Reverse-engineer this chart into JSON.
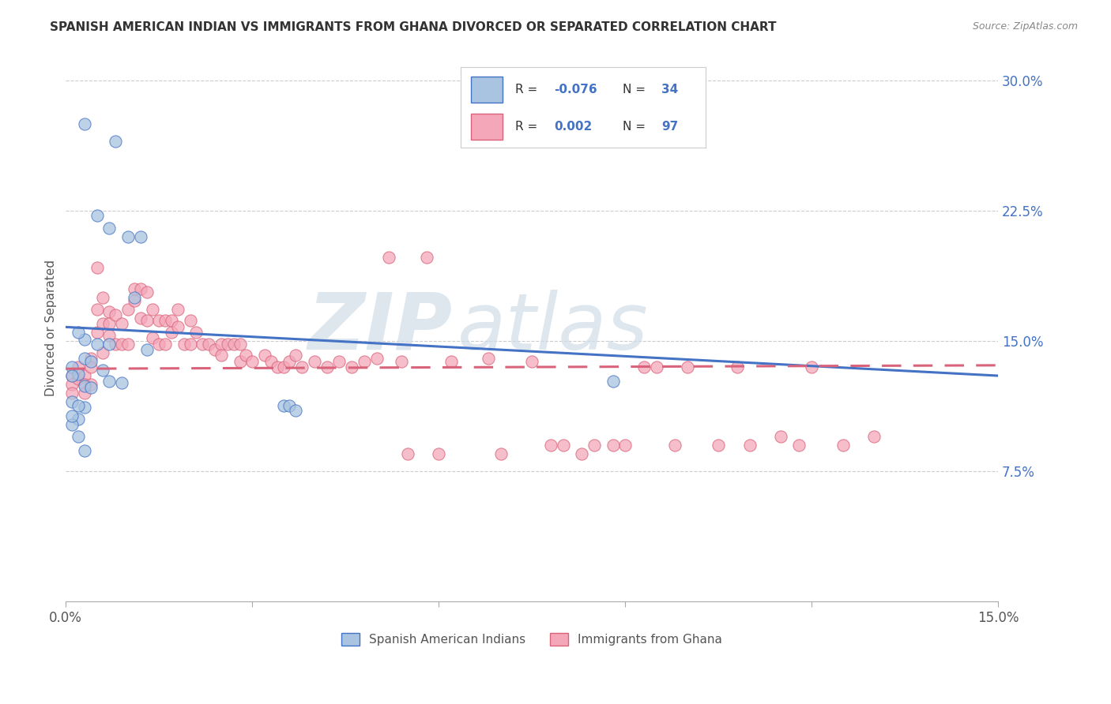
{
  "title": "SPANISH AMERICAN INDIAN VS IMMIGRANTS FROM GHANA DIVORCED OR SEPARATED CORRELATION CHART",
  "source": "Source: ZipAtlas.com",
  "ylabel": "Divorced or Separated",
  "watermark": "ZIPatlas",
  "xlim": [
    0.0,
    0.15
  ],
  "ylim": [
    0.0,
    0.315
  ],
  "xtick_vals": [
    0.0,
    0.03,
    0.06,
    0.09,
    0.12,
    0.15
  ],
  "xtick_labels": [
    "0.0%",
    "",
    "",
    "",
    "",
    "15.0%"
  ],
  "yticks_right": [
    0.075,
    0.15,
    0.225,
    0.3
  ],
  "ytick_right_labels": [
    "7.5%",
    "15.0%",
    "22.5%",
    "30.0%"
  ],
  "blue_R": "-0.076",
  "blue_N": "34",
  "pink_R": "0.002",
  "pink_N": "97",
  "blue_color": "#a8c4e0",
  "pink_color": "#f4a7b9",
  "blue_line_color": "#4472c4",
  "pink_line_color": "#d9637a",
  "legend_label_blue": "Spanish American Indians",
  "legend_label_pink": "Immigrants from Ghana",
  "blue_line_x": [
    0.0,
    0.15
  ],
  "blue_line_y": [
    0.158,
    0.13
  ],
  "pink_line_x": [
    0.0,
    0.15
  ],
  "pink_line_y": [
    0.134,
    0.136
  ],
  "blue_scatter_x": [
    0.003,
    0.008,
    0.005,
    0.007,
    0.01,
    0.012,
    0.011,
    0.005,
    0.007,
    0.003,
    0.002,
    0.013,
    0.003,
    0.004,
    0.006,
    0.007,
    0.009,
    0.001,
    0.002,
    0.001,
    0.003,
    0.004,
    0.003,
    0.001,
    0.002,
    0.035,
    0.036,
    0.037,
    0.002,
    0.001,
    0.001,
    0.088,
    0.002,
    0.003
  ],
  "blue_scatter_y": [
    0.275,
    0.265,
    0.222,
    0.215,
    0.21,
    0.21,
    0.175,
    0.148,
    0.148,
    0.151,
    0.155,
    0.145,
    0.14,
    0.138,
    0.133,
    0.127,
    0.126,
    0.135,
    0.131,
    0.13,
    0.124,
    0.123,
    0.112,
    0.115,
    0.113,
    0.113,
    0.113,
    0.11,
    0.105,
    0.102,
    0.107,
    0.127,
    0.095,
    0.087
  ],
  "pink_scatter_x": [
    0.001,
    0.001,
    0.001,
    0.002,
    0.002,
    0.003,
    0.003,
    0.003,
    0.004,
    0.004,
    0.004,
    0.005,
    0.005,
    0.005,
    0.006,
    0.006,
    0.006,
    0.007,
    0.007,
    0.007,
    0.008,
    0.008,
    0.009,
    0.009,
    0.01,
    0.01,
    0.011,
    0.011,
    0.012,
    0.012,
    0.013,
    0.013,
    0.014,
    0.014,
    0.015,
    0.015,
    0.016,
    0.016,
    0.017,
    0.017,
    0.018,
    0.018,
    0.019,
    0.02,
    0.02,
    0.021,
    0.022,
    0.023,
    0.024,
    0.025,
    0.025,
    0.026,
    0.027,
    0.028,
    0.028,
    0.029,
    0.03,
    0.032,
    0.033,
    0.034,
    0.035,
    0.036,
    0.037,
    0.038,
    0.04,
    0.042,
    0.044,
    0.046,
    0.048,
    0.05,
    0.052,
    0.054,
    0.058,
    0.062,
    0.068,
    0.075,
    0.08,
    0.085,
    0.09,
    0.095,
    0.1,
    0.105,
    0.11,
    0.115,
    0.12,
    0.125,
    0.13,
    0.055,
    0.06,
    0.07,
    0.078,
    0.083,
    0.088,
    0.093,
    0.098,
    0.108,
    0.118
  ],
  "pink_scatter_y": [
    0.13,
    0.125,
    0.12,
    0.135,
    0.128,
    0.13,
    0.125,
    0.12,
    0.14,
    0.135,
    0.125,
    0.192,
    0.168,
    0.155,
    0.175,
    0.16,
    0.143,
    0.167,
    0.16,
    0.153,
    0.165,
    0.148,
    0.16,
    0.148,
    0.168,
    0.148,
    0.18,
    0.173,
    0.18,
    0.163,
    0.178,
    0.162,
    0.168,
    0.152,
    0.162,
    0.148,
    0.162,
    0.148,
    0.162,
    0.155,
    0.168,
    0.158,
    0.148,
    0.162,
    0.148,
    0.155,
    0.148,
    0.148,
    0.145,
    0.148,
    0.142,
    0.148,
    0.148,
    0.148,
    0.138,
    0.142,
    0.138,
    0.142,
    0.138,
    0.135,
    0.135,
    0.138,
    0.142,
    0.135,
    0.138,
    0.135,
    0.138,
    0.135,
    0.138,
    0.14,
    0.198,
    0.138,
    0.198,
    0.138,
    0.14,
    0.138,
    0.09,
    0.09,
    0.09,
    0.135,
    0.135,
    0.09,
    0.09,
    0.095,
    0.135,
    0.09,
    0.095,
    0.085,
    0.085,
    0.085,
    0.09,
    0.085,
    0.09,
    0.135,
    0.09,
    0.135,
    0.09
  ]
}
